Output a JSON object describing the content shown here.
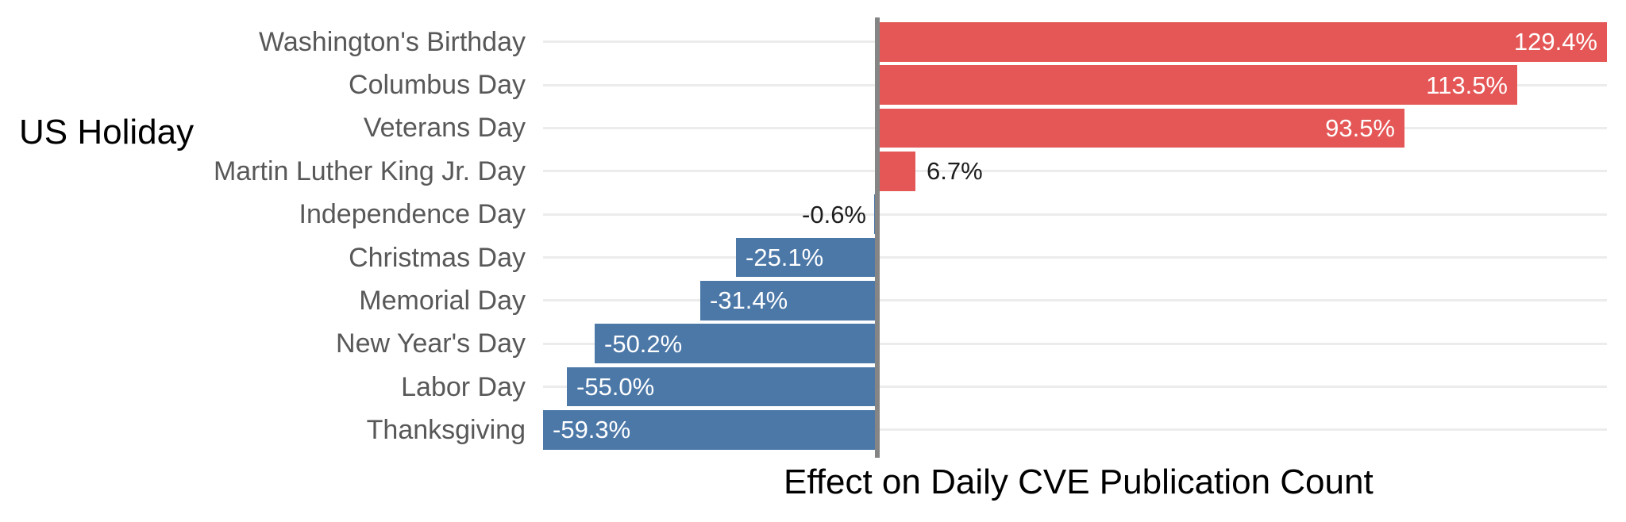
{
  "chart": {
    "y_axis_title": "US Holiday",
    "x_axis_title": "Effect on Daily CVE Publication Count"
  },
  "chart_data": {
    "type": "bar",
    "orientation": "horizontal",
    "title": "",
    "xlabel": "Effect on Daily CVE Publication Count",
    "ylabel": "US Holiday",
    "categories": [
      "Washington's Birthday",
      "Columbus Day",
      "Veterans Day",
      "Martin Luther King Jr. Day",
      "Independence Day",
      "Christmas Day",
      "Memorial Day",
      "New Year's Day",
      "Labor Day",
      "Thanksgiving"
    ],
    "values": [
      129.4,
      113.5,
      93.5,
      6.7,
      -0.6,
      -25.1,
      -31.4,
      -50.2,
      -55.0,
      -59.3
    ],
    "value_labels": [
      "129.4%",
      "113.5%",
      "93.5%",
      "6.7%",
      "-0.6%",
      "-25.1%",
      "-31.4%",
      "-50.2%",
      "-55.0%",
      "-59.3%"
    ],
    "value_label_placement": [
      "inside-end",
      "inside-end",
      "inside-end",
      "outside-end",
      "outside-end",
      "inside-end",
      "inside-end",
      "inside-end",
      "inside-end",
      "inside-end"
    ],
    "xlim": [
      -59.3,
      129.4
    ],
    "x_tick_labels": "none",
    "grid": "horizontal line at each category row center",
    "legend": "none",
    "colors": {
      "positive_bar": "#e45756",
      "negative_bar": "#4c78a8",
      "zero_axis_line": "#858585",
      "gridline": "#ececec",
      "category_label": "#585858",
      "value_label_inside": "#ffffff",
      "value_label_outside": "#1d1d1d",
      "axis_title": "#000000",
      "background": "#ffffff"
    }
  }
}
